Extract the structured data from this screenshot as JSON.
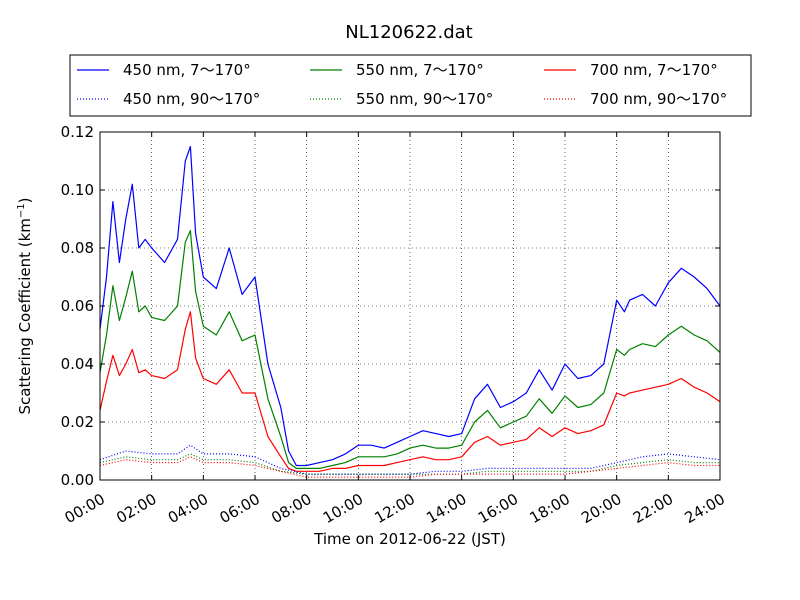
{
  "chart_data": {
    "type": "line",
    "title": "NL120622.dat",
    "xlabel": "Time on 2012-06-22 (JST)",
    "ylabel_main": "Scattering Coefficient (km",
    "ylabel_sup": "−1",
    "ylabel_close": ")",
    "xlim": [
      0,
      24
    ],
    "ylim": [
      0,
      0.12
    ],
    "x_ticks": [
      0,
      2,
      4,
      6,
      8,
      10,
      12,
      14,
      16,
      18,
      20,
      22,
      24
    ],
    "x_tick_labels": [
      "00:00",
      "02:00",
      "04:00",
      "06:00",
      "08:00",
      "10:00",
      "12:00",
      "14:00",
      "16:00",
      "18:00",
      "20:00",
      "22:00",
      "24:00"
    ],
    "y_ticks": [
      0,
      0.02,
      0.04,
      0.06,
      0.08,
      0.1,
      0.12
    ],
    "y_tick_labels": [
      "0.00",
      "0.02",
      "0.04",
      "0.06",
      "0.08",
      "0.10",
      "0.12"
    ],
    "grid": true,
    "legend_position": "top, above plot",
    "x_units": "hours",
    "series": [
      {
        "name": "450 nm, 7～170°",
        "color": "#0000ff",
        "style": "solid",
        "x": [
          0,
          0.25,
          0.5,
          0.75,
          1,
          1.25,
          1.5,
          1.75,
          2,
          2.5,
          3,
          3.3,
          3.5,
          3.7,
          4,
          4.5,
          5,
          5.5,
          6,
          6.5,
          7,
          7.3,
          7.6,
          8,
          8.5,
          9,
          9.5,
          10,
          10.5,
          11,
          11.5,
          12,
          12.5,
          13,
          13.5,
          14,
          14.5,
          15,
          15.5,
          16,
          16.5,
          17,
          17.5,
          18,
          18.5,
          19,
          19.5,
          20,
          20.3,
          20.5,
          21,
          21.5,
          22,
          22.5,
          23,
          23.5,
          24
        ],
        "y": [
          0.052,
          0.07,
          0.096,
          0.075,
          0.09,
          0.102,
          0.08,
          0.083,
          0.08,
          0.075,
          0.083,
          0.11,
          0.115,
          0.085,
          0.07,
          0.066,
          0.08,
          0.064,
          0.07,
          0.04,
          0.025,
          0.01,
          0.005,
          0.005,
          0.006,
          0.007,
          0.009,
          0.012,
          0.012,
          0.011,
          0.013,
          0.015,
          0.017,
          0.016,
          0.015,
          0.016,
          0.028,
          0.033,
          0.025,
          0.027,
          0.03,
          0.038,
          0.031,
          0.04,
          0.035,
          0.036,
          0.04,
          0.062,
          0.058,
          0.062,
          0.064,
          0.06,
          0.068,
          0.073,
          0.07,
          0.066,
          0.06
        ]
      },
      {
        "name": "550 nm, 7～170°",
        "color": "#008000",
        "style": "solid",
        "x": [
          0,
          0.25,
          0.5,
          0.75,
          1,
          1.25,
          1.5,
          1.75,
          2,
          2.5,
          3,
          3.3,
          3.5,
          3.7,
          4,
          4.5,
          5,
          5.5,
          6,
          6.5,
          7,
          7.3,
          7.6,
          8,
          8.5,
          9,
          9.5,
          10,
          10.5,
          11,
          11.5,
          12,
          12.5,
          13,
          13.5,
          14,
          14.5,
          15,
          15.5,
          16,
          16.5,
          17,
          17.5,
          18,
          18.5,
          19,
          19.5,
          20,
          20.3,
          20.5,
          21,
          21.5,
          22,
          22.5,
          23,
          23.5,
          24
        ],
        "y": [
          0.037,
          0.05,
          0.067,
          0.055,
          0.063,
          0.072,
          0.058,
          0.06,
          0.056,
          0.055,
          0.06,
          0.082,
          0.086,
          0.065,
          0.053,
          0.05,
          0.058,
          0.048,
          0.05,
          0.028,
          0.015,
          0.006,
          0.004,
          0.004,
          0.004,
          0.005,
          0.006,
          0.008,
          0.008,
          0.008,
          0.009,
          0.011,
          0.012,
          0.011,
          0.011,
          0.012,
          0.02,
          0.024,
          0.018,
          0.02,
          0.022,
          0.028,
          0.023,
          0.029,
          0.025,
          0.026,
          0.03,
          0.045,
          0.043,
          0.045,
          0.047,
          0.046,
          0.05,
          0.053,
          0.05,
          0.048,
          0.044
        ]
      },
      {
        "name": "700 nm, 7～170°",
        "color": "#ff0000",
        "style": "solid",
        "x": [
          0,
          0.25,
          0.5,
          0.75,
          1,
          1.25,
          1.5,
          1.75,
          2,
          2.5,
          3,
          3.3,
          3.5,
          3.7,
          4,
          4.5,
          5,
          5.5,
          6,
          6.5,
          7,
          7.3,
          7.6,
          8,
          8.5,
          9,
          9.5,
          10,
          10.5,
          11,
          11.5,
          12,
          12.5,
          13,
          13.5,
          14,
          14.5,
          15,
          15.5,
          16,
          16.5,
          17,
          17.5,
          18,
          18.5,
          19,
          19.5,
          20,
          20.3,
          20.5,
          21,
          21.5,
          22,
          22.5,
          23,
          23.5,
          24
        ],
        "y": [
          0.024,
          0.034,
          0.043,
          0.036,
          0.04,
          0.045,
          0.037,
          0.038,
          0.036,
          0.035,
          0.038,
          0.052,
          0.058,
          0.042,
          0.035,
          0.033,
          0.038,
          0.03,
          0.03,
          0.015,
          0.008,
          0.004,
          0.003,
          0.003,
          0.003,
          0.004,
          0.004,
          0.005,
          0.005,
          0.005,
          0.006,
          0.007,
          0.008,
          0.007,
          0.007,
          0.008,
          0.013,
          0.015,
          0.012,
          0.013,
          0.014,
          0.018,
          0.015,
          0.018,
          0.016,
          0.017,
          0.019,
          0.03,
          0.029,
          0.03,
          0.031,
          0.032,
          0.033,
          0.035,
          0.032,
          0.03,
          0.027
        ]
      },
      {
        "name": "450 nm, 90～170°",
        "color": "#0000ff",
        "style": "dotted",
        "x": [
          0,
          1,
          2,
          3,
          3.5,
          4,
          5,
          6,
          7,
          8,
          9,
          10,
          11,
          12,
          13,
          14,
          15,
          16,
          17,
          18,
          19,
          20,
          21,
          22,
          23,
          24
        ],
        "y": [
          0.007,
          0.01,
          0.009,
          0.009,
          0.012,
          0.009,
          0.009,
          0.008,
          0.004,
          0.002,
          0.002,
          0.002,
          0.002,
          0.002,
          0.003,
          0.003,
          0.004,
          0.004,
          0.004,
          0.004,
          0.004,
          0.006,
          0.008,
          0.009,
          0.008,
          0.007
        ]
      },
      {
        "name": "550 nm, 90～170°",
        "color": "#008000",
        "style": "dotted",
        "x": [
          0,
          1,
          2,
          3,
          3.5,
          4,
          5,
          6,
          7,
          8,
          9,
          10,
          11,
          12,
          13,
          14,
          15,
          16,
          17,
          18,
          19,
          20,
          21,
          22,
          23,
          24
        ],
        "y": [
          0.006,
          0.008,
          0.007,
          0.007,
          0.009,
          0.007,
          0.007,
          0.006,
          0.003,
          0.002,
          0.002,
          0.002,
          0.002,
          0.002,
          0.002,
          0.002,
          0.003,
          0.003,
          0.003,
          0.003,
          0.003,
          0.005,
          0.006,
          0.007,
          0.006,
          0.006
        ]
      },
      {
        "name": "700 nm, 90～170°",
        "color": "#ff0000",
        "style": "dotted",
        "x": [
          0,
          1,
          2,
          3,
          3.5,
          4,
          5,
          6,
          7,
          8,
          9,
          10,
          11,
          12,
          13,
          14,
          15,
          16,
          17,
          18,
          19,
          20,
          21,
          22,
          23,
          24
        ],
        "y": [
          0.005,
          0.007,
          0.006,
          0.006,
          0.008,
          0.006,
          0.006,
          0.005,
          0.003,
          0.001,
          0.001,
          0.001,
          0.001,
          0.001,
          0.002,
          0.002,
          0.002,
          0.002,
          0.002,
          0.002,
          0.003,
          0.004,
          0.005,
          0.006,
          0.005,
          0.005
        ]
      }
    ]
  }
}
